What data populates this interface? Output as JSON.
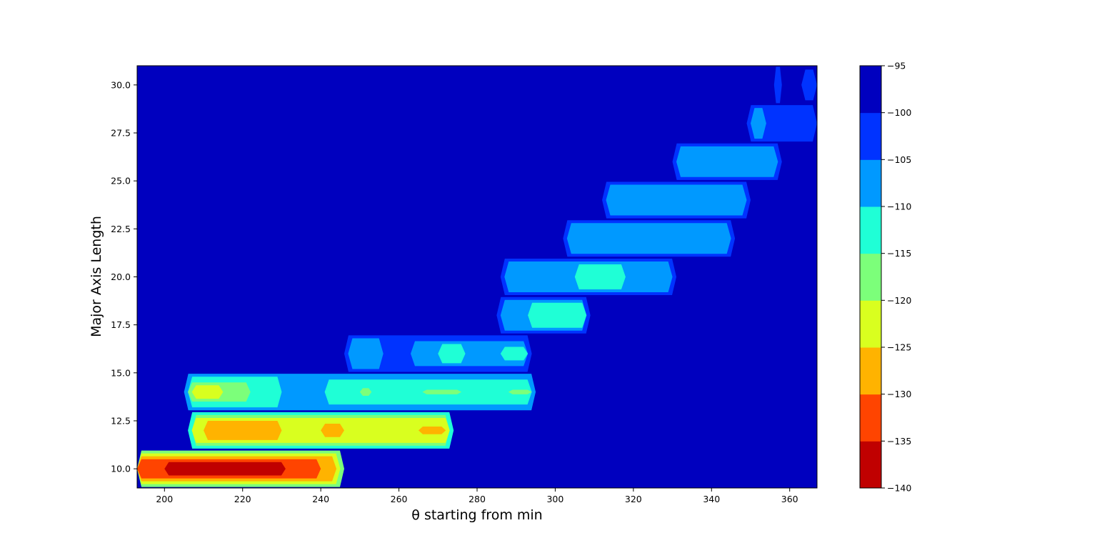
{
  "chart_data": {
    "type": "heatmap",
    "subtype": "filled-contour",
    "title": "",
    "xlabel": "θ starting from min",
    "ylabel": "Major Axis Length",
    "xlim": [
      193,
      367
    ],
    "ylim": [
      9.0,
      31.0
    ],
    "x_ticks": [
      200,
      220,
      240,
      260,
      280,
      300,
      320,
      340,
      360
    ],
    "x_tick_labels": [
      "200",
      "220",
      "240",
      "260",
      "280",
      "300",
      "320",
      "340",
      "360"
    ],
    "y_ticks": [
      10.0,
      12.5,
      15.0,
      17.5,
      20.0,
      22.5,
      25.0,
      27.5,
      30.0
    ],
    "y_tick_labels": [
      "10.0",
      "12.5",
      "15.0",
      "17.5",
      "20.0",
      "22.5",
      "25.0",
      "27.5",
      "30.0"
    ],
    "colorbar": {
      "levels": [
        -140,
        -135,
        -130,
        -125,
        -120,
        -115,
        -110,
        -105,
        -100,
        -95
      ],
      "tick_labels": [
        "−140",
        "−135",
        "−130",
        "−125",
        "−120",
        "−115",
        "−110",
        "−105",
        "−100",
        "−95"
      ],
      "colors": [
        "#c00000",
        "#ff4400",
        "#ffb300",
        "#d9ff1f",
        "#7cff7a",
        "#1fffd6",
        "#0099ff",
        "#0033ff",
        "#0000bf"
      ]
    },
    "background_value": -97.5,
    "bands": [
      {
        "y": 10,
        "x_start": 193,
        "x_end": 246,
        "segments": [
          {
            "x0": 193,
            "x1": 246,
            "value": -116
          },
          {
            "x0": 193,
            "x1": 245,
            "value": -121
          },
          {
            "x0": 193,
            "x1": 244,
            "value": -126
          },
          {
            "x0": 193,
            "x1": 240,
            "value": -131
          },
          {
            "x0": 200,
            "x1": 231,
            "value": -136
          },
          {
            "x0": 208,
            "x1": 230,
            "value": -141
          }
        ]
      },
      {
        "y": 12,
        "x_start": 206,
        "x_end": 274,
        "segments": [
          {
            "x0": 206,
            "x1": 274,
            "value": -111
          },
          {
            "x0": 207,
            "x1": 273,
            "value": -116
          },
          {
            "x0": 207,
            "x1": 273,
            "value": -121
          },
          {
            "x0": 210,
            "x1": 230,
            "value": -126
          },
          {
            "x0": 240,
            "x1": 246,
            "value": -126
          },
          {
            "x0": 265,
            "x1": 272,
            "value": -126
          }
        ]
      },
      {
        "y": 14,
        "x_start": 205,
        "x_end": 295,
        "segments": [
          {
            "x0": 205,
            "x1": 295,
            "value": -106
          },
          {
            "x0": 206,
            "x1": 230,
            "value": -111
          },
          {
            "x0": 241,
            "x1": 294,
            "value": -111
          },
          {
            "x0": 206,
            "x1": 222,
            "value": -116
          },
          {
            "x0": 207,
            "x1": 215,
            "value": -121
          },
          {
            "x0": 250,
            "x1": 253,
            "value": -116
          },
          {
            "x0": 266,
            "x1": 276,
            "value": -116
          },
          {
            "x0": 288,
            "x1": 294,
            "value": -116
          }
        ]
      },
      {
        "y": 16,
        "x_start": 246,
        "x_end": 294,
        "segments": [
          {
            "x0": 246,
            "x1": 294,
            "value": -101
          },
          {
            "x0": 247,
            "x1": 256,
            "value": -106
          },
          {
            "x0": 263,
            "x1": 293,
            "value": -106
          },
          {
            "x0": 270,
            "x1": 277,
            "value": -111
          },
          {
            "x0": 286,
            "x1": 293,
            "value": -111
          }
        ]
      },
      {
        "y": 18,
        "x_start": 285,
        "x_end": 309,
        "segments": [
          {
            "x0": 285,
            "x1": 309,
            "value": -101
          },
          {
            "x0": 286,
            "x1": 308,
            "value": -106
          },
          {
            "x0": 293,
            "x1": 308,
            "value": -111
          }
        ]
      },
      {
        "y": 20,
        "x_start": 301,
        "x_end": 331,
        "segments": [
          {
            "x0": 286,
            "x1": 331,
            "value": -101
          },
          {
            "x0": 287,
            "x1": 330,
            "value": -106
          },
          {
            "x0": 305,
            "x1": 318,
            "value": -111
          }
        ]
      },
      {
        "y": 22,
        "x_start": 302,
        "x_end": 346,
        "segments": [
          {
            "x0": 302,
            "x1": 346,
            "value": -101
          },
          {
            "x0": 303,
            "x1": 345,
            "value": -106
          }
        ]
      },
      {
        "y": 24,
        "x_start": 312,
        "x_end": 350,
        "segments": [
          {
            "x0": 312,
            "x1": 350,
            "value": -101
          },
          {
            "x0": 313,
            "x1": 349,
            "value": -106
          }
        ]
      },
      {
        "y": 26,
        "x_start": 330,
        "x_end": 358,
        "segments": [
          {
            "x0": 330,
            "x1": 358,
            "value": -101
          },
          {
            "x0": 331,
            "x1": 357,
            "value": -106
          }
        ]
      },
      {
        "y": 28,
        "x_start": 349,
        "x_end": 367,
        "segments": [
          {
            "x0": 349,
            "x1": 367,
            "value": -101
          },
          {
            "x0": 350,
            "x1": 354,
            "value": -106
          }
        ]
      },
      {
        "y": 30,
        "x_start": 356,
        "x_end": 367,
        "segments": [
          {
            "x0": 356,
            "x1": 358,
            "value": -101
          },
          {
            "x0": 363,
            "x1": 367,
            "value": -101
          }
        ]
      }
    ]
  }
}
